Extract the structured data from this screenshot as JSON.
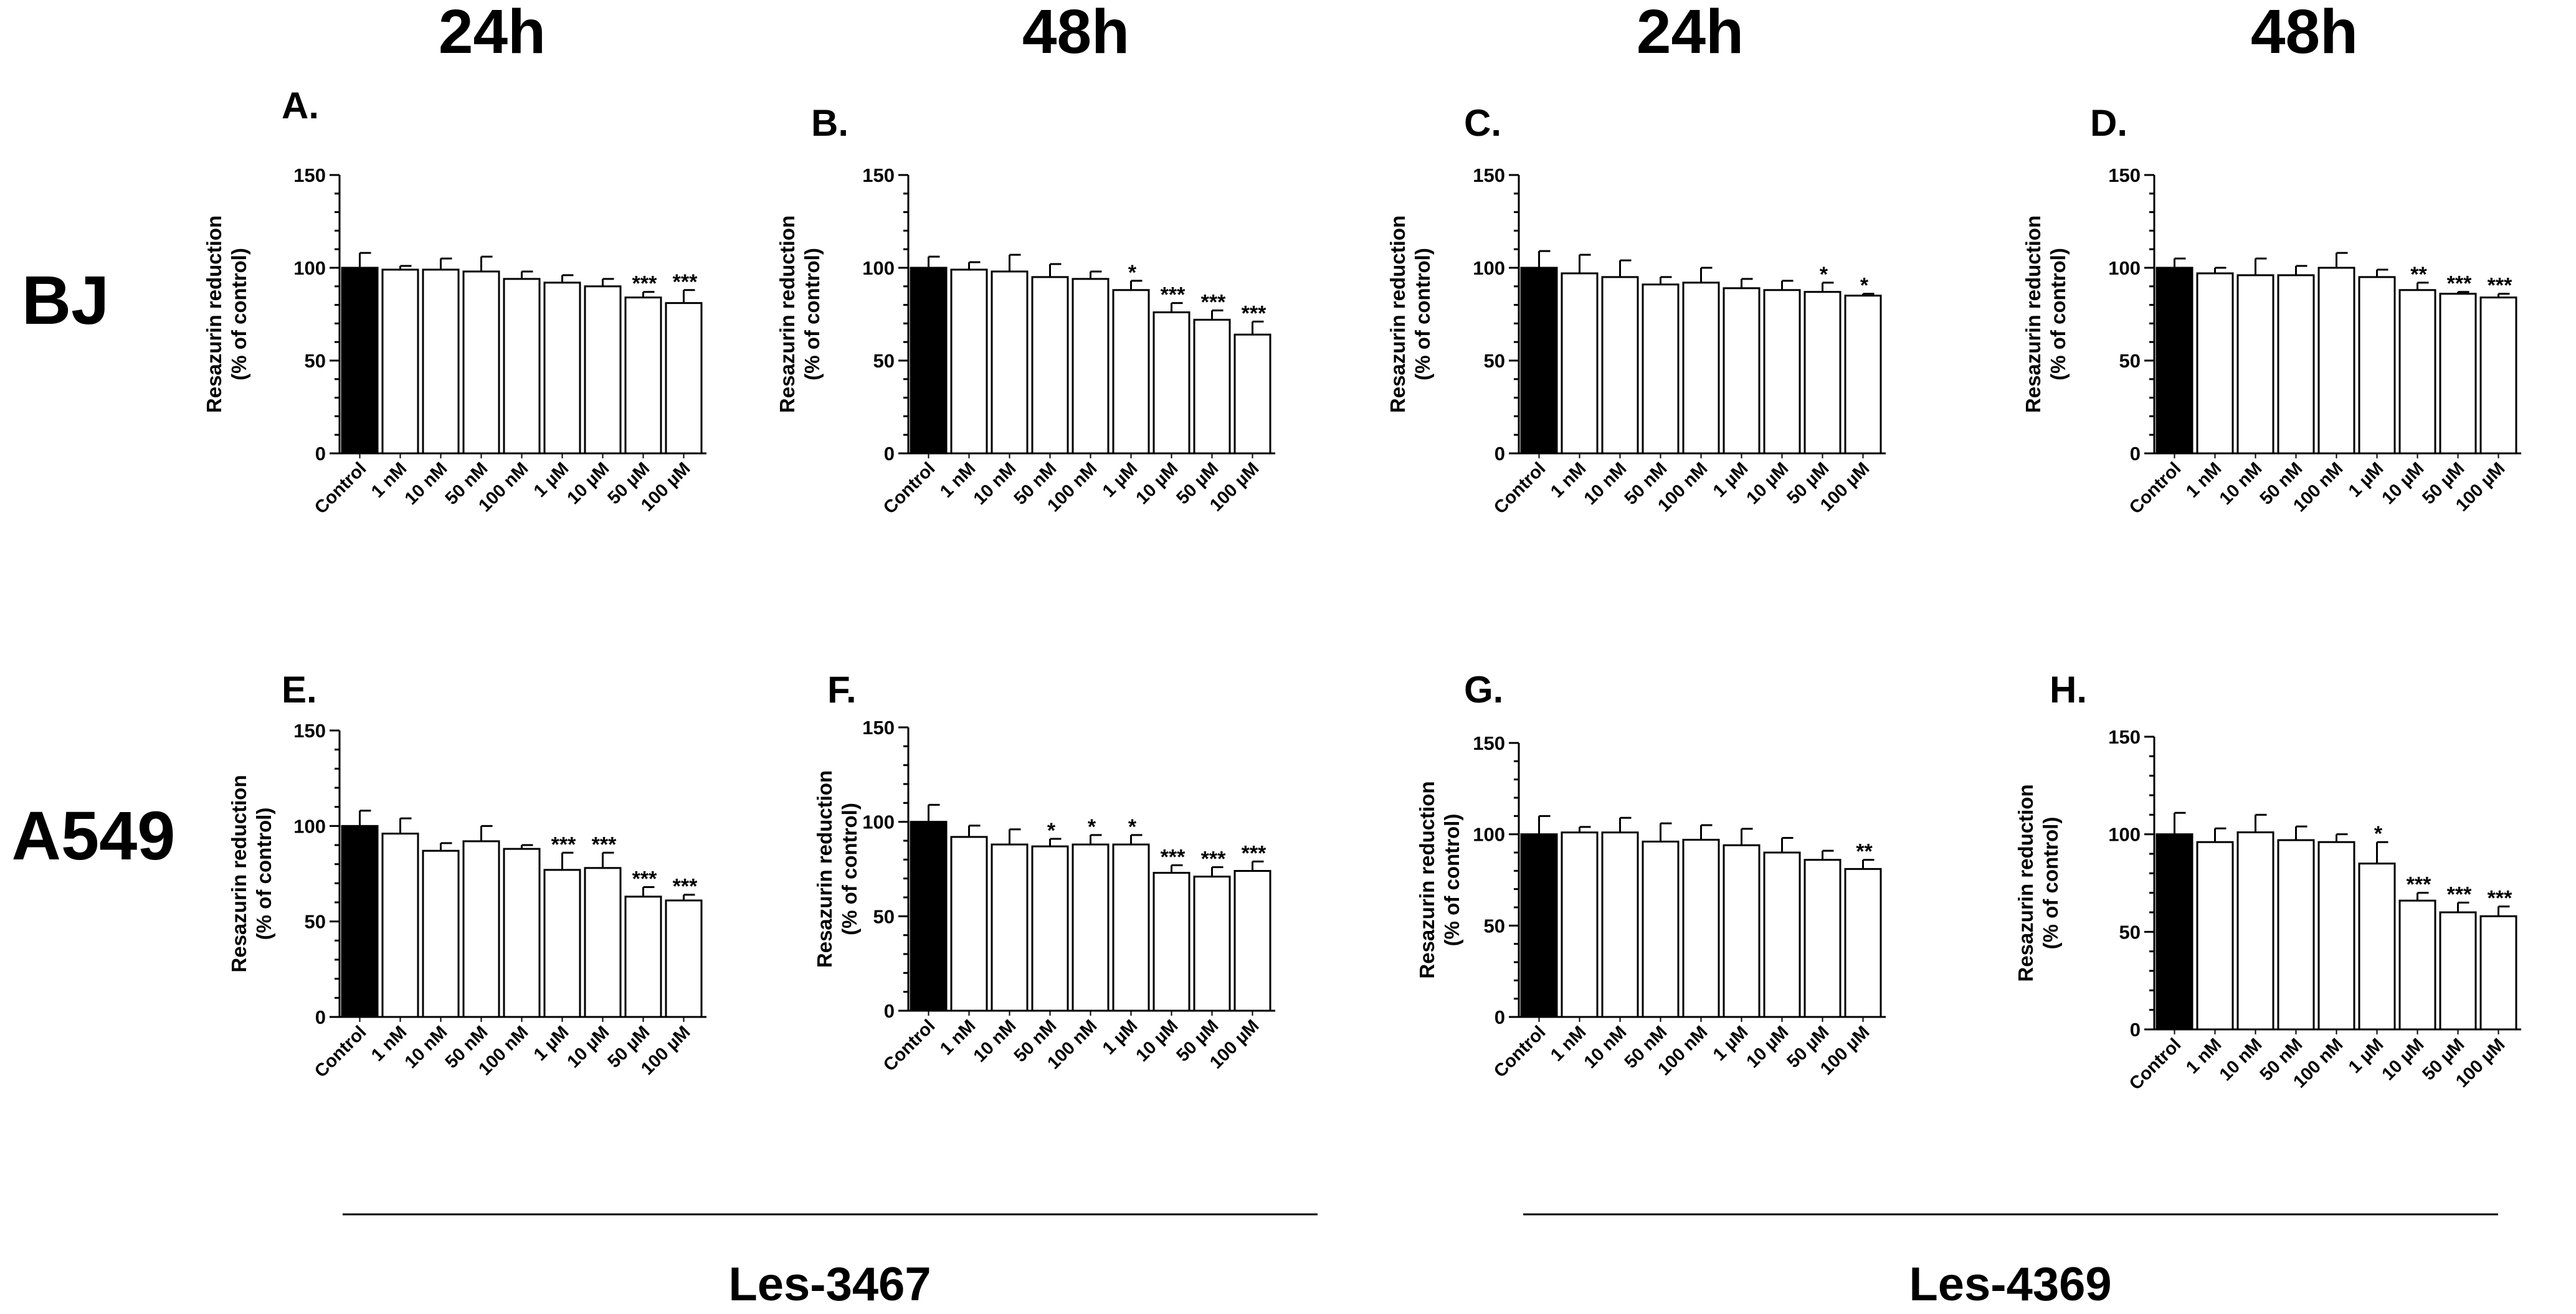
{
  "figure": {
    "column_headers": [
      "24h",
      "48h",
      "24h",
      "48h"
    ],
    "row_labels": [
      "BJ",
      "A549"
    ],
    "compound_labels": [
      "Les-3467",
      "Les-4369"
    ]
  },
  "colors": {
    "control_fill": "#000000",
    "treatment_fill": "#ffffff",
    "stroke": "#000000"
  },
  "chart_data": [
    {
      "panel": "A.",
      "type": "bar",
      "cell_line": "BJ",
      "time": "24h",
      "compound": "Les-3467",
      "ylabel": [
        "Resazurin reduction",
        "(% of control)"
      ],
      "ylim": [
        0,
        150
      ],
      "yticks": [
        0,
        50,
        100,
        150
      ],
      "categories": [
        "Control",
        "1 nM",
        "10 nM",
        "50 nM",
        "100 nM",
        "1 µM",
        "10 µM",
        "50 µM",
        "100 µM"
      ],
      "values": [
        100,
        99,
        99,
        98,
        94,
        92,
        90,
        84,
        81
      ],
      "errors": [
        8,
        2,
        6,
        8,
        4,
        4,
        4,
        3,
        7
      ],
      "significance": [
        "",
        "",
        "",
        "",
        "",
        "",
        "",
        "***",
        "***"
      ]
    },
    {
      "panel": "B.",
      "type": "bar",
      "cell_line": "BJ",
      "time": "48h",
      "compound": "Les-3467",
      "ylabel": [
        "Resazurin reduction",
        "(% of control)"
      ],
      "ylim": [
        0,
        150
      ],
      "yticks": [
        0,
        50,
        100,
        150
      ],
      "categories": [
        "Control",
        "1 nM",
        "10 nM",
        "50 nM",
        "100 nM",
        "1 µM",
        "10 µM",
        "50 µM",
        "100 µM"
      ],
      "values": [
        100,
        99,
        98,
        95,
        94,
        88,
        76,
        72,
        64
      ],
      "errors": [
        6,
        4,
        9,
        7,
        4,
        5,
        5,
        5,
        7
      ],
      "significance": [
        "",
        "",
        "",
        "",
        "",
        "*",
        "***",
        "***",
        "***"
      ]
    },
    {
      "panel": "C.",
      "type": "bar",
      "cell_line": "BJ",
      "time": "24h",
      "compound": "Les-4369",
      "ylabel": [
        "Resazurin reduction",
        "(% of control)"
      ],
      "ylim": [
        0,
        150
      ],
      "yticks": [
        0,
        50,
        100,
        150
      ],
      "categories": [
        "Control",
        "1 nM",
        "10 nM",
        "50 nM",
        "100 nM",
        "1 µM",
        "10 µM",
        "50 µM",
        "100 µM"
      ],
      "values": [
        100,
        97,
        95,
        91,
        92,
        89,
        88,
        87,
        85
      ],
      "errors": [
        9,
        10,
        9,
        4,
        8,
        5,
        5,
        5,
        1
      ],
      "significance": [
        "",
        "",
        "",
        "",
        "",
        "",
        "",
        "*",
        "*"
      ]
    },
    {
      "panel": "D.",
      "type": "bar",
      "cell_line": "BJ",
      "time": "48h",
      "compound": "Les-4369",
      "ylabel": [
        "Resazurin reduction",
        "(% of control)"
      ],
      "ylim": [
        0,
        150
      ],
      "yticks": [
        0,
        50,
        100,
        150
      ],
      "categories": [
        "Control",
        "1 nM",
        "10 nM",
        "50 nM",
        "100 nM",
        "1 µM",
        "10 µM",
        "50 µM",
        "100 µM"
      ],
      "values": [
        100,
        97,
        96,
        96,
        100,
        95,
        88,
        86,
        84
      ],
      "errors": [
        5,
        3,
        9,
        5,
        8,
        4,
        4,
        1,
        2
      ],
      "significance": [
        "",
        "",
        "",
        "",
        "",
        "",
        "**",
        "***",
        "***"
      ]
    },
    {
      "panel": "E.",
      "type": "bar",
      "cell_line": "A549",
      "time": "24h",
      "compound": "Les-3467",
      "ylabel": [
        "Resazurin reduction",
        "(% of control)"
      ],
      "ylim": [
        0,
        150
      ],
      "yticks": [
        0,
        50,
        100,
        150
      ],
      "categories": [
        "Control",
        "1 nM",
        "10 nM",
        "50 nM",
        "100 nM",
        "1 µM",
        "10 µM",
        "50 µM",
        "100 µM"
      ],
      "values": [
        100,
        96,
        87,
        92,
        88,
        77,
        78,
        63,
        61
      ],
      "errors": [
        8,
        8,
        4,
        8,
        2,
        9,
        8,
        5,
        3
      ],
      "significance": [
        "",
        "",
        "",
        "",
        "",
        "***",
        "***",
        "***",
        "***"
      ]
    },
    {
      "panel": "F.",
      "type": "bar",
      "cell_line": "A549",
      "time": "48h",
      "compound": "Les-3467",
      "ylabel": [
        "Resazurin reduction",
        "(% of control)"
      ],
      "ylim": [
        0,
        150
      ],
      "yticks": [
        0,
        50,
        100,
        150
      ],
      "categories": [
        "Control",
        "1 nM",
        "10 nM",
        "50 nM",
        "100 nM",
        "1 µM",
        "10 µM",
        "50 µM",
        "100 µM"
      ],
      "values": [
        100,
        92,
        88,
        87,
        88,
        88,
        73,
        71,
        74
      ],
      "errors": [
        9,
        6,
        8,
        4,
        5,
        5,
        4,
        5,
        5
      ],
      "significance": [
        "",
        "",
        "",
        "*",
        "*",
        "*",
        "***",
        "***",
        "***"
      ]
    },
    {
      "panel": "G.",
      "type": "bar",
      "cell_line": "A549",
      "time": "24h",
      "compound": "Les-4369",
      "ylabel": [
        "Resazurin reduction",
        "(% of control)"
      ],
      "ylim": [
        0,
        150
      ],
      "yticks": [
        0,
        50,
        100,
        150
      ],
      "categories": [
        "Control",
        "1 nM",
        "10 nM",
        "50 nM",
        "100 nM",
        "1 µM",
        "10 µM",
        "50 µM",
        "100 µM"
      ],
      "values": [
        100,
        101,
        101,
        96,
        97,
        94,
        90,
        86,
        81
      ],
      "errors": [
        10,
        3,
        8,
        10,
        8,
        9,
        8,
        5,
        5
      ],
      "significance": [
        "",
        "",
        "",
        "",
        "",
        "",
        "",
        "",
        "**"
      ]
    },
    {
      "panel": "H.",
      "type": "bar",
      "cell_line": "A549",
      "time": "48h",
      "compound": "Les-4369",
      "ylabel": [
        "Resazurin reduction",
        "(% of control)"
      ],
      "ylim": [
        0,
        150
      ],
      "yticks": [
        0,
        50,
        100,
        150
      ],
      "categories": [
        "Control",
        "1 nM",
        "10 nM",
        "50 nM",
        "100 nM",
        "1 µM",
        "10 µM",
        "50 µM",
        "100 µM"
      ],
      "values": [
        100,
        96,
        101,
        97,
        96,
        85,
        66,
        60,
        58
      ],
      "errors": [
        11,
        7,
        9,
        7,
        4,
        11,
        4,
        5,
        5
      ],
      "significance": [
        "",
        "",
        "",
        "",
        "",
        "*",
        "***",
        "***",
        "***"
      ]
    }
  ]
}
